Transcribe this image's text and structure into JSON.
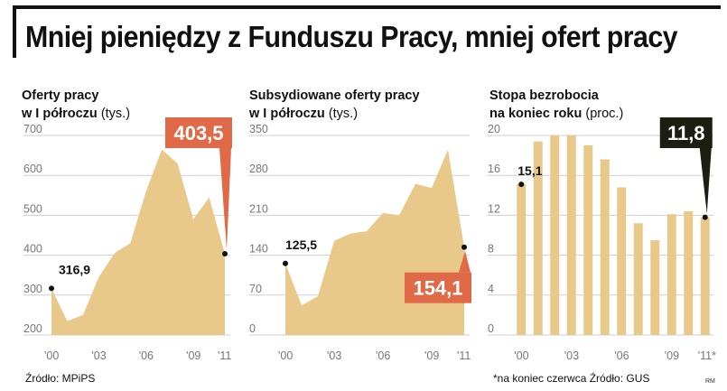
{
  "headline": "Mniej pieniędzy z Funduszu Pracy, mniej ofert pracy",
  "signature": "RM",
  "colors": {
    "area": "#e8c98a",
    "grid": "#cfcfcf",
    "orange": "#e06a47",
    "dark": "#1b1e10"
  },
  "chart_data": [
    {
      "type": "area",
      "title_bold_1": "Oferty pracy",
      "title_bold_2": "w I półroczu",
      "title_unit": "(tys.)",
      "y_ticks": [
        "700",
        "600",
        "500",
        "400",
        "300",
        "200"
      ],
      "ylim": [
        200,
        700
      ],
      "x_labels": [
        "'00",
        "'03",
        "'06",
        "'09",
        "'11"
      ],
      "x": [
        2000,
        2001,
        2002,
        2003,
        2004,
        2005,
        2006,
        2007,
        2008,
        2009,
        2010,
        2011
      ],
      "values": [
        316.9,
        235,
        250,
        345,
        405,
        430,
        560,
        665,
        630,
        490,
        545,
        403.5
      ],
      "start_label": "316,9",
      "end_label": "403,5",
      "callout_color": "orange",
      "source": "Źródło: MPiPS"
    },
    {
      "type": "area",
      "title_bold_1": "Subsydiowane oferty pracy",
      "title_bold_2": "w I półroczu",
      "title_unit": "(tys.)",
      "y_ticks": [
        "350",
        "280",
        "210",
        "140",
        "70",
        "0"
      ],
      "ylim": [
        0,
        350
      ],
      "x_labels": [
        "'00",
        "'03",
        "'06",
        "'09",
        "'11"
      ],
      "x": [
        2000,
        2001,
        2002,
        2003,
        2004,
        2005,
        2006,
        2007,
        2008,
        2009,
        2010,
        2011
      ],
      "values": [
        125.5,
        52,
        68,
        165,
        178,
        182,
        214,
        210,
        265,
        258,
        325,
        154.1
      ],
      "start_label": "125,5",
      "end_label": "154,1",
      "callout_color": "orange"
    },
    {
      "type": "bar",
      "title_bold_1": "Stopa bezrobocia",
      "title_bold_2": "na koniec roku",
      "title_unit": "(proc.)",
      "y_ticks": [
        "20",
        "16",
        "12",
        "8",
        "4",
        "0"
      ],
      "ylim": [
        0,
        20
      ],
      "x_labels": [
        "'00",
        "'03",
        "'06",
        "'09",
        "'11*"
      ],
      "categories": [
        "2000",
        "2001",
        "2002",
        "2003",
        "2004",
        "2005",
        "2006",
        "2007",
        "2008",
        "2009",
        "2010",
        "2011"
      ],
      "values": [
        15.1,
        19.4,
        20.0,
        20.0,
        19.0,
        17.6,
        14.8,
        11.2,
        9.5,
        12.1,
        12.4,
        11.8
      ],
      "start_label": "15,1",
      "end_label": "11,8",
      "callout_color": "dark",
      "source": "*na koniec czerwca  Źródło: GUS"
    }
  ]
}
